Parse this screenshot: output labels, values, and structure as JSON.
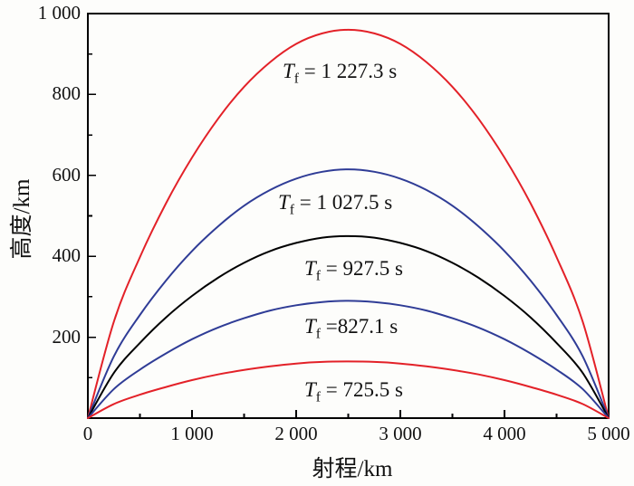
{
  "figure": {
    "background": "#fdfdfb",
    "frame_color": "#000000",
    "text_color": "#111111"
  },
  "chart_data": {
    "type": "line",
    "title": "",
    "xlabel": "射程/km",
    "ylabel": "高度/km",
    "xlim": [
      0,
      5000
    ],
    "ylim": [
      0,
      1000
    ],
    "grid": false,
    "legend_position": "inline-labels",
    "x": [
      0,
      250,
      500,
      750,
      1000,
      1250,
      1500,
      1750,
      2000,
      2250,
      2500,
      2750,
      3000,
      3250,
      3500,
      3750,
      4000,
      4250,
      4500,
      4750,
      5000
    ],
    "series": [
      {
        "name": "Tf = 1 227.3 s",
        "flight_time_s": 1227.3,
        "peak_altitude_km": 960,
        "apex_x_km": 2500,
        "color": "#e32128",
        "label": {
          "symbol": "T",
          "sub": "f",
          "text": "= 1 227.3 s"
        },
        "values": [
          0,
          239,
          398,
          531,
          644,
          740,
          819,
          880,
          925,
          951,
          960,
          951,
          925,
          880,
          819,
          740,
          644,
          531,
          398,
          239,
          0
        ]
      },
      {
        "name": "Tf = 1 027.5 s",
        "flight_time_s": 1027.5,
        "peak_altitude_km": 615,
        "apex_x_km": 2500,
        "color": "#2f3c96",
        "label": {
          "symbol": "T",
          "sub": "f",
          "text": "= 1 027.5 s"
        },
        "values": [
          0,
          153,
          255,
          340,
          413,
          474,
          525,
          564,
          592,
          609,
          615,
          609,
          592,
          564,
          525,
          474,
          413,
          340,
          255,
          153,
          0
        ]
      },
      {
        "name": "Tf = 927.5 s",
        "flight_time_s": 927.5,
        "peak_altitude_km": 450,
        "apex_x_km": 2500,
        "color": "#000000",
        "label": {
          "symbol": "T",
          "sub": "f",
          "text": "= 927.5 s"
        },
        "values": [
          0,
          112,
          186,
          249,
          302,
          347,
          384,
          413,
          433,
          446,
          450,
          446,
          433,
          413,
          384,
          347,
          302,
          249,
          186,
          112,
          0
        ]
      },
      {
        "name": "Tf =827.1 s",
        "flight_time_s": 827.1,
        "peak_altitude_km": 290,
        "apex_x_km": 2500,
        "color": "#2f3c96",
        "label": {
          "symbol": "T",
          "sub": "f",
          "text": "=827.1 s"
        },
        "values": [
          0,
          72,
          120,
          160,
          195,
          224,
          247,
          266,
          279,
          287,
          290,
          287,
          279,
          266,
          247,
          224,
          195,
          160,
          120,
          72,
          0
        ]
      },
      {
        "name": "Tf = 725.5 s",
        "flight_time_s": 725.5,
        "peak_altitude_km": 140,
        "apex_x_km": 2500,
        "color": "#e32128",
        "label": {
          "symbol": "T",
          "sub": "f",
          "text": "= 725.5 s"
        },
        "values": [
          0,
          35,
          58,
          77,
          94,
          108,
          119,
          128,
          135,
          139,
          140,
          139,
          135,
          128,
          119,
          108,
          94,
          77,
          58,
          35,
          0
        ]
      }
    ],
    "x_axis": {
      "label": "射程/km",
      "major_ticks": [
        0,
        1000,
        2000,
        3000,
        4000,
        5000
      ],
      "minor_ticks": [
        500,
        1500,
        2500,
        3500,
        4500
      ],
      "tick_labels": [
        "0",
        "1 000",
        "2 000",
        "3 000",
        "4 000",
        "5 000"
      ]
    },
    "y_axis": {
      "label": "高度/km",
      "major_ticks": [
        200,
        400,
        600,
        800,
        1000
      ],
      "minor_ticks": [
        100,
        300,
        500,
        700,
        900
      ],
      "tick_labels": [
        "200",
        "400",
        "600",
        "800",
        "1 000"
      ]
    }
  }
}
